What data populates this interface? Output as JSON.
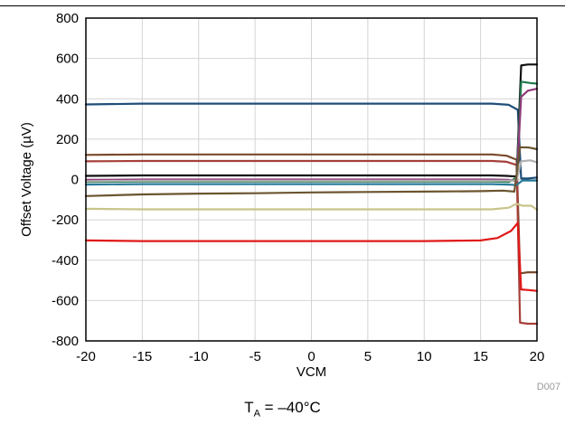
{
  "figure_code": "D007",
  "condition": {
    "symbol": "T",
    "subscript": "A",
    "value": " = –40°C"
  },
  "chart_data": {
    "type": "line",
    "title": "",
    "xlabel": "VCM",
    "ylabel": "Offset Voltage (µV)",
    "xlim": [
      -20,
      20
    ],
    "ylim": [
      -800,
      800
    ],
    "xticks": [
      -20,
      -15,
      -10,
      -5,
      0,
      5,
      10,
      15,
      20
    ],
    "yticks": [
      800,
      600,
      400,
      200,
      0,
      -200,
      -400,
      -600,
      -800
    ],
    "xtick_labels": [
      "-20",
      "-15",
      "-10",
      "-5",
      "0",
      "5",
      "10",
      "15",
      "20"
    ],
    "ytick_labels": [
      "800",
      "600",
      "400",
      "200",
      "0",
      "-200",
      "-400",
      "-600",
      "-800"
    ],
    "grid": true,
    "legend": "none",
    "series": [
      {
        "color": "#1f4e79",
        "points": [
          [
            -20,
            372
          ],
          [
            -15,
            376
          ],
          [
            -10,
            376
          ],
          [
            -5,
            376
          ],
          [
            0,
            376
          ],
          [
            5,
            376
          ],
          [
            10,
            376
          ],
          [
            16,
            376
          ],
          [
            17.5,
            370
          ],
          [
            18.3,
            345
          ],
          [
            18.6,
            5
          ],
          [
            19.2,
            5
          ],
          [
            20,
            10
          ]
        ]
      },
      {
        "color": "#7a4a2a",
        "points": [
          [
            -20,
            122
          ],
          [
            -15,
            124
          ],
          [
            -10,
            124
          ],
          [
            0,
            124
          ],
          [
            10,
            124
          ],
          [
            16,
            124
          ],
          [
            17.3,
            118
          ],
          [
            18.2,
            98
          ],
          [
            18.5,
            -465
          ],
          [
            19.2,
            -460
          ],
          [
            20,
            -460
          ]
        ]
      },
      {
        "color": "#a6403a",
        "points": [
          [
            -20,
            90
          ],
          [
            -15,
            92
          ],
          [
            -10,
            92
          ],
          [
            0,
            92
          ],
          [
            10,
            92
          ],
          [
            16,
            92
          ],
          [
            17.3,
            88
          ],
          [
            18.2,
            72
          ],
          [
            18.5,
            -710
          ],
          [
            19.2,
            -715
          ],
          [
            20,
            -715
          ]
        ]
      },
      {
        "color": "#111111",
        "points": [
          [
            -20,
            18
          ],
          [
            -15,
            20
          ],
          [
            -10,
            20
          ],
          [
            0,
            20
          ],
          [
            10,
            20
          ],
          [
            16,
            20
          ],
          [
            17.3,
            18
          ],
          [
            18.2,
            15
          ],
          [
            18.6,
            565
          ],
          [
            19.2,
            570
          ],
          [
            20,
            570
          ]
        ]
      },
      {
        "color": "#1e7a4c",
        "points": [
          [
            -20,
            -12
          ],
          [
            -15,
            -10
          ],
          [
            -10,
            -10
          ],
          [
            0,
            -10
          ],
          [
            10,
            -10
          ],
          [
            16,
            -10
          ],
          [
            17.5,
            -12
          ],
          [
            18.2,
            10
          ],
          [
            18.6,
            485
          ],
          [
            19.4,
            478
          ],
          [
            20,
            475
          ]
        ]
      },
      {
        "color": "#8e3a7a",
        "points": [
          [
            -20,
            -2
          ],
          [
            -15,
            0
          ],
          [
            -10,
            0
          ],
          [
            0,
            0
          ],
          [
            10,
            0
          ],
          [
            16,
            0
          ],
          [
            17.5,
            -2
          ],
          [
            18.2,
            -8
          ],
          [
            18.6,
            410
          ],
          [
            19.2,
            440
          ],
          [
            20,
            450
          ]
        ]
      },
      {
        "color": "#2a7a9a",
        "points": [
          [
            -20,
            -25
          ],
          [
            -15,
            -23
          ],
          [
            -10,
            -23
          ],
          [
            0,
            -23
          ],
          [
            10,
            -23
          ],
          [
            16,
            -23
          ],
          [
            17.5,
            -25
          ],
          [
            18.2,
            -28
          ],
          [
            18.7,
            -5
          ],
          [
            20,
            -5
          ]
        ]
      },
      {
        "color": "#b0b0b0",
        "points": [
          [
            -20,
            -8
          ],
          [
            -15,
            -6
          ],
          [
            -10,
            -6
          ],
          [
            0,
            -6
          ],
          [
            10,
            -6
          ],
          [
            16,
            -6
          ],
          [
            17.5,
            -6
          ],
          [
            18.2,
            -4
          ],
          [
            18.6,
            90
          ],
          [
            19.4,
            95
          ],
          [
            20,
            85
          ]
        ]
      },
      {
        "color": "#6b5530",
        "points": [
          [
            -20,
            -82
          ],
          [
            -15,
            -74
          ],
          [
            -10,
            -70
          ],
          [
            -5,
            -68
          ],
          [
            0,
            -64
          ],
          [
            5,
            -62
          ],
          [
            10,
            -60
          ],
          [
            15,
            -58
          ],
          [
            17,
            -55
          ],
          [
            18,
            -60
          ],
          [
            18.5,
            160
          ],
          [
            19.3,
            158
          ],
          [
            20,
            150
          ]
        ]
      },
      {
        "color": "#c8c48a",
        "points": [
          [
            -20,
            -145
          ],
          [
            -15,
            -148
          ],
          [
            -10,
            -148
          ],
          [
            0,
            -148
          ],
          [
            10,
            -148
          ],
          [
            16,
            -148
          ],
          [
            17.5,
            -140
          ],
          [
            18.2,
            -120
          ],
          [
            18.7,
            -130
          ],
          [
            19.5,
            -130
          ],
          [
            20,
            -150
          ]
        ]
      },
      {
        "color": "#e01818",
        "points": [
          [
            -20,
            -302
          ],
          [
            -15,
            -305
          ],
          [
            -10,
            -305
          ],
          [
            -5,
            -305
          ],
          [
            0,
            -305
          ],
          [
            5,
            -305
          ],
          [
            10,
            -305
          ],
          [
            15,
            -302
          ],
          [
            16.5,
            -290
          ],
          [
            17.7,
            -255
          ],
          [
            18.3,
            -215
          ],
          [
            18.6,
            -545
          ],
          [
            19.3,
            -548
          ],
          [
            20,
            -552
          ]
        ]
      }
    ]
  }
}
